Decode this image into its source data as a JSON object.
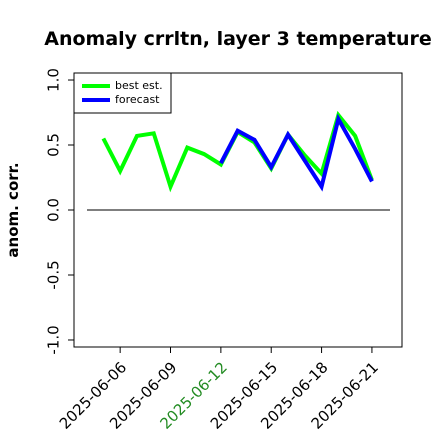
{
  "chart_data": {
    "type": "line",
    "title": "Anomaly crrltn, layer 3 temperature",
    "ylabel": "anom. corr.",
    "x": [
      "2025-06-05",
      "2025-06-06",
      "2025-06-07",
      "2025-06-08",
      "2025-06-09",
      "2025-06-10",
      "2025-06-11",
      "2025-06-12",
      "2025-06-13",
      "2025-06-14",
      "2025-06-15",
      "2025-06-16",
      "2025-06-17",
      "2025-06-18",
      "2025-06-19",
      "2025-06-20",
      "2025-06-21"
    ],
    "series": [
      {
        "name": "best est.",
        "color": "#00ff00",
        "values": [
          0.55,
          0.3,
          0.57,
          0.59,
          0.18,
          0.48,
          0.43,
          0.35,
          0.6,
          0.52,
          0.32,
          0.58,
          0.42,
          0.28,
          0.73,
          0.57,
          0.23
        ]
      },
      {
        "name": "forecast",
        "color": "#0000ff",
        "values": [
          null,
          null,
          null,
          null,
          null,
          null,
          null,
          0.36,
          0.61,
          0.54,
          0.33,
          0.58,
          0.38,
          0.18,
          0.7,
          0.47,
          0.22
        ]
      }
    ],
    "xlim": [
      "2025-06-03T06:00Z",
      "2025-06-22T19:00Z"
    ],
    "xticks": [
      "2025-06-06",
      "2025-06-09",
      "2025-06-12",
      "2025-06-15",
      "2025-06-18",
      "2025-06-21"
    ],
    "xtick_colors": [
      "#000000",
      "#000000",
      "#228b22",
      "#000000",
      "#000000",
      "#000000"
    ],
    "ylim": [
      -1.054,
      1.054
    ],
    "yticks": [
      {
        "value": -1,
        "label": "-1.0"
      },
      -0.5,
      {
        "value": 0,
        "label": "0.0"
      },
      0.5,
      {
        "value": 1,
        "label": "1.0"
      }
    ],
    "hline": 0,
    "hline_color": "#555555",
    "legend": "upper left"
  }
}
